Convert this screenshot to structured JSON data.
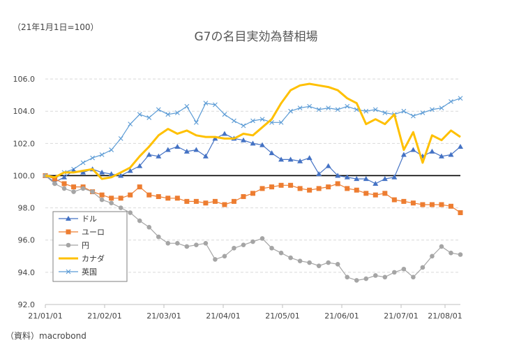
{
  "unit_note": "（21年1月1日=100）",
  "source_note": "（資料）macrobond",
  "chart_data": {
    "type": "line",
    "title": "G7の名目実効為替相場",
    "xlabel": "",
    "ylabel": "",
    "ylim": [
      92,
      107
    ],
    "yticks": [
      92.0,
      94.0,
      96.0,
      98.0,
      100.0,
      102.0,
      104.0,
      106.0
    ],
    "xticks": [
      "21/01/01",
      "21/02/01",
      "21/03/01",
      "21/04/01",
      "21/05/01",
      "21/06/01",
      "21/07/01",
      "21/08/01"
    ],
    "xlim": [
      0,
      220
    ],
    "x_unit": "days since 2021-01-01",
    "reference_line": 100,
    "grid": "horizontal dashed",
    "legend_position": "bottom-left",
    "series": [
      {
        "name": "ドル",
        "color": "#4472C4",
        "marker": "triangle",
        "points": [
          [
            0,
            100.0
          ],
          [
            5,
            99.6
          ],
          [
            10,
            99.9
          ],
          [
            15,
            100.3
          ],
          [
            20,
            100.2
          ],
          [
            25,
            100.4
          ],
          [
            30,
            100.2
          ],
          [
            35,
            100.1
          ],
          [
            40,
            100.0
          ],
          [
            45,
            100.3
          ],
          [
            50,
            100.6
          ],
          [
            55,
            101.3
          ],
          [
            60,
            101.2
          ],
          [
            65,
            101.6
          ],
          [
            70,
            101.8
          ],
          [
            75,
            101.5
          ],
          [
            80,
            101.6
          ],
          [
            85,
            101.2
          ],
          [
            90,
            102.3
          ],
          [
            95,
            102.6
          ],
          [
            100,
            102.3
          ],
          [
            105,
            102.2
          ],
          [
            110,
            102.0
          ],
          [
            115,
            101.9
          ],
          [
            120,
            101.4
          ],
          [
            125,
            101.0
          ],
          [
            130,
            101.0
          ],
          [
            135,
            100.9
          ],
          [
            140,
            101.1
          ],
          [
            145,
            100.1
          ],
          [
            150,
            100.6
          ],
          [
            155,
            100.0
          ],
          [
            160,
            99.9
          ],
          [
            165,
            99.8
          ],
          [
            170,
            99.8
          ],
          [
            175,
            99.5
          ],
          [
            180,
            99.8
          ],
          [
            185,
            99.9
          ],
          [
            190,
            101.3
          ],
          [
            195,
            101.6
          ],
          [
            200,
            101.2
          ],
          [
            205,
            101.5
          ],
          [
            210,
            101.2
          ],
          [
            215,
            101.3
          ],
          [
            220,
            101.8
          ]
        ]
      },
      {
        "name": "ユーロ",
        "color": "#ED7D31",
        "marker": "square",
        "points": [
          [
            0,
            100.0
          ],
          [
            5,
            99.8
          ],
          [
            10,
            99.5
          ],
          [
            15,
            99.3
          ],
          [
            20,
            99.3
          ],
          [
            25,
            99.0
          ],
          [
            30,
            98.8
          ],
          [
            35,
            98.6
          ],
          [
            40,
            98.6
          ],
          [
            45,
            98.8
          ],
          [
            50,
            99.3
          ],
          [
            55,
            98.8
          ],
          [
            60,
            98.7
          ],
          [
            65,
            98.6
          ],
          [
            70,
            98.6
          ],
          [
            75,
            98.4
          ],
          [
            80,
            98.4
          ],
          [
            85,
            98.3
          ],
          [
            90,
            98.4
          ],
          [
            95,
            98.2
          ],
          [
            100,
            98.4
          ],
          [
            105,
            98.7
          ],
          [
            110,
            98.9
          ],
          [
            115,
            99.2
          ],
          [
            120,
            99.3
          ],
          [
            125,
            99.4
          ],
          [
            130,
            99.4
          ],
          [
            135,
            99.2
          ],
          [
            140,
            99.1
          ],
          [
            145,
            99.2
          ],
          [
            150,
            99.3
          ],
          [
            155,
            99.5
          ],
          [
            160,
            99.2
          ],
          [
            165,
            99.1
          ],
          [
            170,
            98.9
          ],
          [
            175,
            98.8
          ],
          [
            180,
            98.9
          ],
          [
            185,
            98.5
          ],
          [
            190,
            98.4
          ],
          [
            195,
            98.3
          ],
          [
            200,
            98.2
          ],
          [
            205,
            98.2
          ],
          [
            210,
            98.2
          ],
          [
            215,
            98.1
          ],
          [
            220,
            97.7
          ]
        ]
      },
      {
        "name": "円",
        "color": "#A5A5A5",
        "marker": "circle",
        "points": [
          [
            0,
            100.0
          ],
          [
            5,
            99.5
          ],
          [
            10,
            99.2
          ],
          [
            15,
            99.0
          ],
          [
            20,
            99.2
          ],
          [
            25,
            99.0
          ],
          [
            30,
            98.5
          ],
          [
            35,
            98.3
          ],
          [
            40,
            98.0
          ],
          [
            45,
            97.7
          ],
          [
            50,
            97.2
          ],
          [
            55,
            96.8
          ],
          [
            60,
            96.2
          ],
          [
            65,
            95.8
          ],
          [
            70,
            95.8
          ],
          [
            75,
            95.6
          ],
          [
            80,
            95.7
          ],
          [
            85,
            95.8
          ],
          [
            90,
            94.8
          ],
          [
            95,
            95.0
          ],
          [
            100,
            95.5
          ],
          [
            105,
            95.7
          ],
          [
            110,
            95.9
          ],
          [
            115,
            96.1
          ],
          [
            120,
            95.5
          ],
          [
            125,
            95.2
          ],
          [
            130,
            94.9
          ],
          [
            135,
            94.7
          ],
          [
            140,
            94.6
          ],
          [
            145,
            94.4
          ],
          [
            150,
            94.6
          ],
          [
            155,
            94.5
          ],
          [
            160,
            93.7
          ],
          [
            165,
            93.5
          ],
          [
            170,
            93.6
          ],
          [
            175,
            93.8
          ],
          [
            180,
            93.7
          ],
          [
            185,
            94.0
          ],
          [
            190,
            94.2
          ],
          [
            195,
            93.7
          ],
          [
            200,
            94.3
          ],
          [
            205,
            95.0
          ],
          [
            210,
            95.6
          ],
          [
            215,
            95.2
          ],
          [
            220,
            95.1
          ]
        ]
      },
      {
        "name": "カナダ",
        "color": "#FFC000",
        "marker": "none",
        "points": [
          [
            0,
            100.0
          ],
          [
            5,
            99.9
          ],
          [
            10,
            100.2
          ],
          [
            15,
            100.2
          ],
          [
            20,
            100.3
          ],
          [
            25,
            100.4
          ],
          [
            30,
            99.8
          ],
          [
            35,
            99.9
          ],
          [
            40,
            100.2
          ],
          [
            45,
            100.5
          ],
          [
            50,
            101.2
          ],
          [
            55,
            101.8
          ],
          [
            60,
            102.5
          ],
          [
            65,
            102.9
          ],
          [
            70,
            102.6
          ],
          [
            75,
            102.8
          ],
          [
            80,
            102.5
          ],
          [
            85,
            102.4
          ],
          [
            90,
            102.4
          ],
          [
            95,
            102.3
          ],
          [
            100,
            102.3
          ],
          [
            105,
            102.6
          ],
          [
            110,
            102.5
          ],
          [
            115,
            103.0
          ],
          [
            120,
            103.5
          ],
          [
            125,
            104.5
          ],
          [
            130,
            105.3
          ],
          [
            135,
            105.6
          ],
          [
            140,
            105.7
          ],
          [
            145,
            105.6
          ],
          [
            150,
            105.5
          ],
          [
            155,
            105.3
          ],
          [
            160,
            104.8
          ],
          [
            165,
            104.5
          ],
          [
            170,
            103.2
          ],
          [
            175,
            103.5
          ],
          [
            180,
            103.2
          ],
          [
            185,
            103.8
          ],
          [
            190,
            101.6
          ],
          [
            195,
            102.7
          ],
          [
            200,
            100.8
          ],
          [
            205,
            102.5
          ],
          [
            210,
            102.2
          ],
          [
            215,
            102.8
          ],
          [
            220,
            102.4
          ]
        ]
      },
      {
        "name": "英国",
        "color": "#5B9BD5",
        "marker": "x",
        "points": [
          [
            0,
            100.0
          ],
          [
            5,
            99.8
          ],
          [
            10,
            100.2
          ],
          [
            15,
            100.4
          ],
          [
            20,
            100.8
          ],
          [
            25,
            101.1
          ],
          [
            30,
            101.3
          ],
          [
            35,
            101.6
          ],
          [
            40,
            102.3
          ],
          [
            45,
            103.2
          ],
          [
            50,
            103.8
          ],
          [
            55,
            103.6
          ],
          [
            60,
            104.1
          ],
          [
            65,
            103.8
          ],
          [
            70,
            103.9
          ],
          [
            75,
            104.3
          ],
          [
            80,
            103.3
          ],
          [
            85,
            104.5
          ],
          [
            90,
            104.4
          ],
          [
            95,
            103.8
          ],
          [
            100,
            103.4
          ],
          [
            105,
            103.1
          ],
          [
            110,
            103.4
          ],
          [
            115,
            103.5
          ],
          [
            120,
            103.3
          ],
          [
            125,
            103.3
          ],
          [
            130,
            104.0
          ],
          [
            135,
            104.2
          ],
          [
            140,
            104.3
          ],
          [
            145,
            104.1
          ],
          [
            150,
            104.2
          ],
          [
            155,
            104.1
          ],
          [
            160,
            104.3
          ],
          [
            165,
            104.1
          ],
          [
            170,
            104.0
          ],
          [
            175,
            104.1
          ],
          [
            180,
            103.9
          ],
          [
            185,
            103.8
          ],
          [
            190,
            104.0
          ],
          [
            195,
            103.7
          ],
          [
            200,
            103.9
          ],
          [
            205,
            104.1
          ],
          [
            210,
            104.2
          ],
          [
            215,
            104.6
          ],
          [
            220,
            104.8
          ]
        ]
      }
    ]
  }
}
